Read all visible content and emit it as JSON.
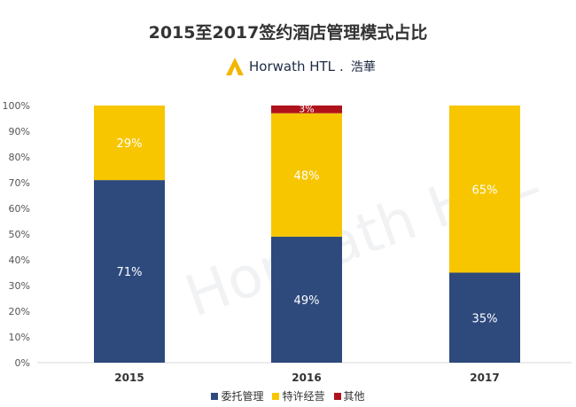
{
  "title": "2015至2017签约酒店管理模式占比",
  "logo": {
    "text": "Horwath HTL",
    "mark": ".",
    "chinese": "浩華"
  },
  "watermark": "Horwath HTL",
  "colors": {
    "series1": "#2e4a7d",
    "series2": "#f7c600",
    "series3": "#b0121b",
    "axis": "#d9d9d9",
    "label_light": "#ffffff"
  },
  "chart_data": {
    "type": "bar",
    "stacked": true,
    "title": "2015至2017签约酒店管理模式占比",
    "categories": [
      "2015",
      "2016",
      "2017"
    ],
    "ylim": [
      0,
      100
    ],
    "yticks": [
      "0%",
      "10%",
      "20%",
      "30%",
      "40%",
      "50%",
      "60%",
      "70%",
      "80%",
      "90%",
      "100%"
    ],
    "legend_position": "bottom",
    "series": [
      {
        "name": "委托管理",
        "values": [
          71,
          49,
          35
        ],
        "labels": [
          "71%",
          "49%",
          "35%"
        ]
      },
      {
        "name": "特许经营",
        "values": [
          29,
          48,
          65
        ],
        "labels": [
          "29%",
          "48%",
          "65%"
        ]
      },
      {
        "name": "其他",
        "values": [
          0,
          3,
          0.5
        ],
        "labels": [
          "",
          "3%",
          ""
        ]
      }
    ]
  }
}
